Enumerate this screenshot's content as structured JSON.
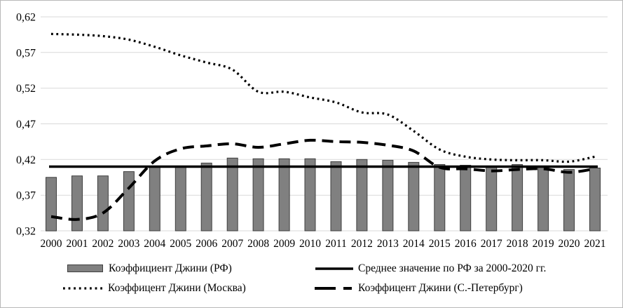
{
  "figure": {
    "background": "#ffffff",
    "border_color": "#b9b9b9"
  },
  "chart_data": {
    "type": "bar",
    "title": "",
    "xlabel": "",
    "ylabel": "",
    "x": [
      "2000",
      "2001",
      "2002",
      "2003",
      "2004",
      "2005",
      "2006",
      "2007",
      "2008",
      "2009",
      "2010",
      "2011",
      "2012",
      "2013",
      "2014",
      "2015",
      "2016",
      "2017",
      "2018",
      "2019",
      "2020",
      "2021"
    ],
    "series": [
      {
        "name": "Коэффициент Джини (РФ)",
        "type": "bar",
        "color": "#808080",
        "border_color": "#3f3f3f",
        "values": [
          0.395,
          0.397,
          0.397,
          0.403,
          0.409,
          0.409,
          0.415,
          0.422,
          0.421,
          0.421,
          0.421,
          0.417,
          0.42,
          0.419,
          0.416,
          0.413,
          0.412,
          0.411,
          0.413,
          0.411,
          0.406,
          0.408
        ]
      },
      {
        "name": "Среднее значение по РФ за 2000-2020 гг.",
        "type": "hline",
        "color": "#000000",
        "value": 0.41
      },
      {
        "name": "Коэффицент Джини (Москва)",
        "type": "dotted-line",
        "color": "#000000",
        "values": [
          0.596,
          0.595,
          0.593,
          0.588,
          0.578,
          0.566,
          0.556,
          0.546,
          0.515,
          0.515,
          0.507,
          0.5,
          0.486,
          0.483,
          0.46,
          0.434,
          0.424,
          0.42,
          0.419,
          0.419,
          0.417,
          0.424
        ]
      },
      {
        "name": "Коэффицент Джини (С.-Петербург)",
        "type": "dashed-line",
        "color": "#000000",
        "values": [
          0.34,
          0.336,
          0.345,
          0.38,
          0.418,
          0.435,
          0.439,
          0.442,
          0.437,
          0.442,
          0.447,
          0.445,
          0.444,
          0.44,
          0.432,
          0.409,
          0.407,
          0.404,
          0.406,
          0.407,
          0.402,
          0.407
        ]
      }
    ],
    "ylim": [
      0.32,
      0.62
    ],
    "ytick_step": 0.05,
    "ytick_labels": [
      "0,62",
      "0,57",
      "0,52",
      "0,47",
      "0,42",
      "0,37",
      "0,32"
    ],
    "grid": "horizontal",
    "gridline_color": "#d9d9d9",
    "legend_position": "bottom-two-columns"
  },
  "legend": {
    "items": [
      {
        "swatch": "bar",
        "label": "Коэффициент Джини (РФ)"
      },
      {
        "swatch": "solid-line",
        "label": "Среднее значение по РФ за 2000-2020 гг."
      },
      {
        "swatch": "dotted-line",
        "label": "Коэффицент Джини (Москва)"
      },
      {
        "swatch": "dashed-line",
        "label": "Коэффицент Джини (С.-Петербург)"
      }
    ]
  }
}
